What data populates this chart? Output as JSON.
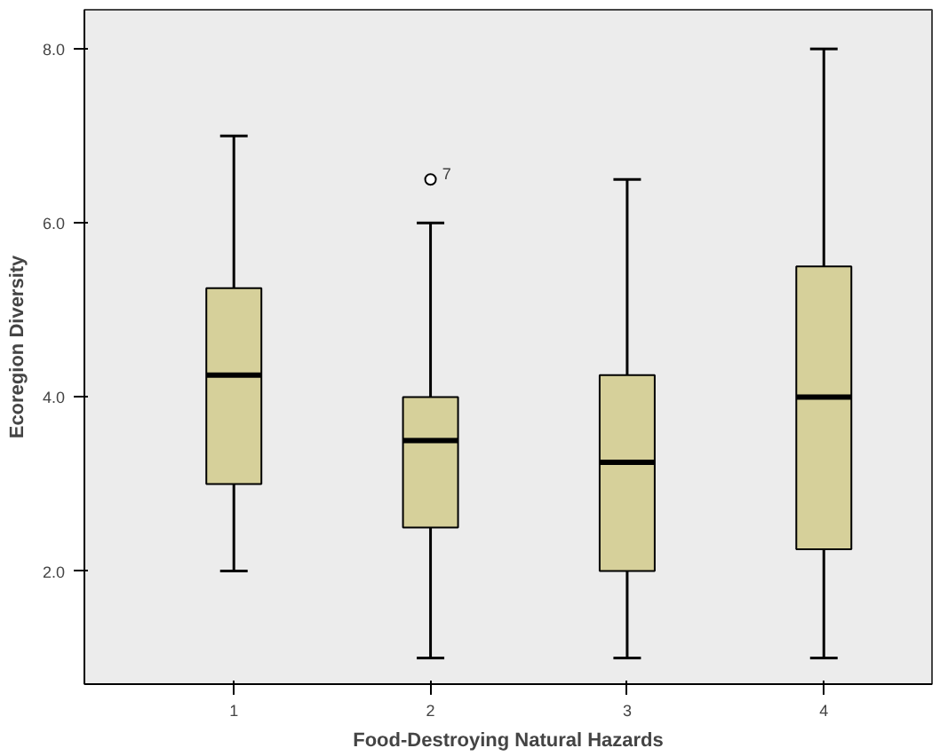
{
  "chart_data": {
    "type": "box",
    "xlabel": "Food-Destroying Natural Hazards",
    "ylabel": "Ecoregion Diversity",
    "categories": [
      "1",
      "2",
      "3",
      "4"
    ],
    "color": "#d6d09a",
    "boxes": [
      {
        "low": 2,
        "q1": 3,
        "median": 4.25,
        "q3": 5.25,
        "high": 7
      },
      {
        "low": 1,
        "q1": 2.5,
        "median": 3.5,
        "q3": 4,
        "high": 6,
        "outliers": [
          6.5
        ]
      },
      {
        "low": 1,
        "q1": 2,
        "median": 3.25,
        "q3": 4.25,
        "high": 6.5
      },
      {
        "low": 1,
        "q1": 2.25,
        "median": 4,
        "q3": 5.5,
        "high": 8
      }
    ],
    "annotations": [
      "7"
    ],
    "ylim": [
      0.7,
      8.45
    ],
    "yticks": [
      {
        "value": 2,
        "label": "2.0"
      },
      {
        "value": 4,
        "label": "4.0"
      },
      {
        "value": 6,
        "label": "6.0"
      },
      {
        "value": 8,
        "label": "8.0"
      }
    ],
    "grid": false
  }
}
